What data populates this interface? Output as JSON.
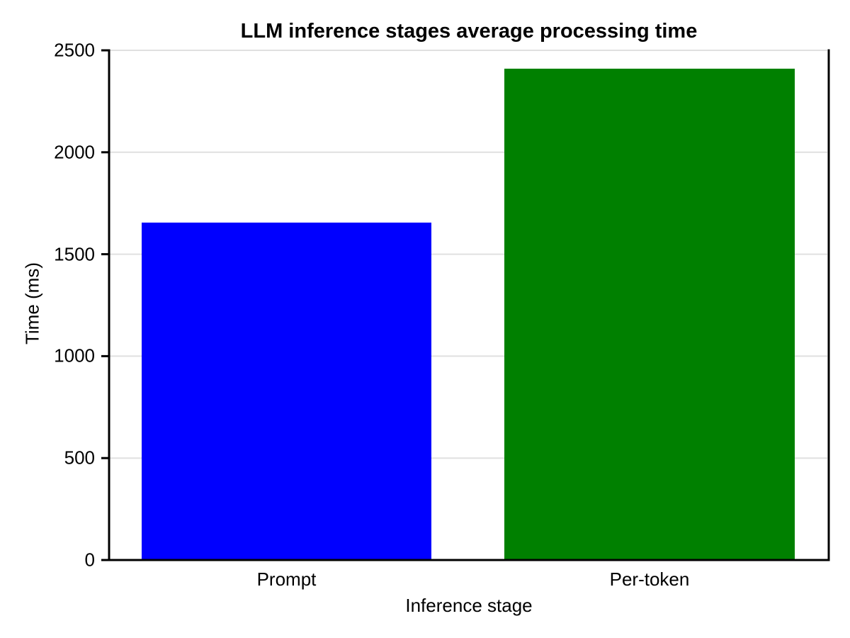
{
  "chart_data": {
    "type": "bar",
    "title": "LLM inference stages average processing time",
    "xlabel": "Inference stage",
    "ylabel": "Time (ms)",
    "categories": [
      "Prompt",
      "Per-token"
    ],
    "values": [
      1655,
      2410
    ],
    "bar_colors": [
      "#0000ff",
      "#008000"
    ],
    "ylim": [
      0,
      2500
    ],
    "yticks": [
      0,
      500,
      1000,
      1500,
      2000,
      2500
    ],
    "grid": true,
    "grid_color": "#e0e0e0",
    "axis_color": "#000000",
    "text_color": "#000000",
    "background": "#ffffff",
    "legend": "none"
  }
}
